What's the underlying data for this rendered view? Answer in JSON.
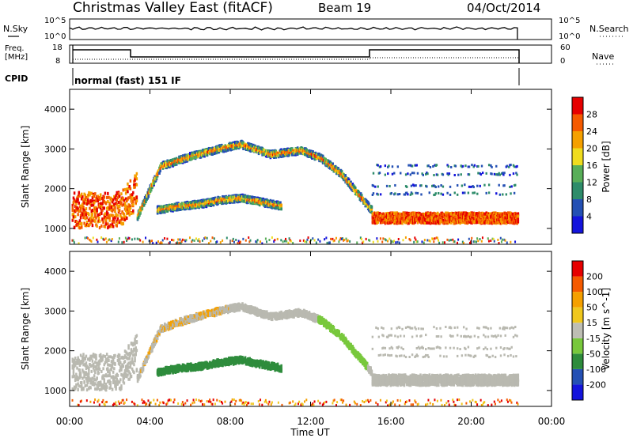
{
  "header": {
    "title": "Christmas Valley East (fitACF)",
    "beam": "Beam 19",
    "date": "04/Oct/2014"
  },
  "noise_panel": {
    "left_label": "N.Sky",
    "left_ticks": [
      "10^5",
      "10^0"
    ],
    "right_ticks": [
      "10^5",
      "10^0"
    ],
    "right_label": "N.Search"
  },
  "freq_panel": {
    "left_label_1": "Freq.",
    "left_label_2": "[MHz]",
    "left_ticks": [
      "18",
      "8"
    ],
    "right_ticks": [
      "60",
      "0"
    ],
    "right_label": "Nave"
  },
  "cpid": {
    "label": "CPID",
    "mode": "normal (fast) 151 IF"
  },
  "colors": {
    "power_scale": [
      "#1414dc",
      "#2450b4",
      "#2e8c6a",
      "#58ae58",
      "#f0dc1e",
      "#f5a000",
      "#f55a00",
      "#e60000"
    ],
    "velocity_scale": [
      "#e60000",
      "#f55a00",
      "#f5a000",
      "#f0c81e",
      "#bebeb4",
      "#78c83c",
      "#2e8c3c",
      "#2450b4",
      "#1414dc"
    ],
    "ground_scatter": "#b9b9b0"
  },
  "chart_data": [
    {
      "type": "heatmap",
      "name": "power-panel",
      "ylabel": "Slant Range [km]",
      "y_ticks": [
        "1000",
        "2000",
        "3000",
        "4000"
      ],
      "ylim": [
        600,
        4500
      ],
      "xlim": [
        0,
        24
      ],
      "colorbar_label": "Power [dB]",
      "colorbar_ticks": [
        "4",
        "8",
        "12",
        "16",
        "20",
        "24",
        "28"
      ],
      "clim": [
        0,
        32
      ],
      "bands": [
        {
          "desc": "main F-region echo",
          "t": [
            3.3,
            4.5,
            6,
            7.5,
            8.5,
            10,
            11.5,
            12.5,
            13.5,
            14.5,
            15.0
          ],
          "range_km": [
            1300,
            2600,
            2850,
            3050,
            3150,
            2900,
            3000,
            2800,
            2400,
            1800,
            1500
          ]
        },
        {
          "desc": "lower echo",
          "t": [
            4.3,
            5.5,
            6.5,
            7.5,
            8.5,
            9.5,
            10.5
          ],
          "range_km": [
            1500,
            1600,
            1650,
            1750,
            1800,
            1700,
            1600
          ]
        },
        {
          "desc": "near-range strong scatter",
          "t": [
            15.0,
            17,
            19,
            21,
            22.3
          ],
          "range_km": [
            1300,
            1300,
            1300,
            1300,
            1300
          ]
        }
      ]
    },
    {
      "type": "heatmap",
      "name": "velocity-panel",
      "ylabel": "Slant Range [km]",
      "y_ticks": [
        "1000",
        "2000",
        "3000",
        "4000"
      ],
      "ylim": [
        600,
        4500
      ],
      "xlim": [
        0,
        24
      ],
      "x_ticks": [
        "00:00",
        "04:00",
        "08:00",
        "12:00",
        "16:00",
        "20:00",
        "00:00"
      ],
      "xlabel": "Time UT",
      "colorbar_label": "Velocity [m s^-1]",
      "colorbar_ticks": [
        "200",
        "100",
        "50",
        "15",
        "-15",
        "-50",
        "-100",
        "-200"
      ],
      "clim": [
        -250,
        250
      ]
    }
  ]
}
